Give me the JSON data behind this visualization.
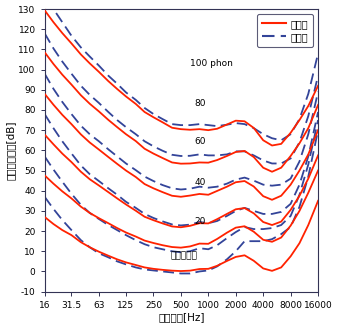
{
  "xlabel": "周波数　[Hz]",
  "ylabel": "音圧レベル　[dB]",
  "legend_new": "新規格",
  "legend_old": "旧規格",
  "new_color": "#ff2200",
  "old_color": "#334499",
  "ylim": [
    -10,
    130
  ],
  "yticks": [
    -10,
    0,
    10,
    20,
    30,
    40,
    50,
    60,
    70,
    80,
    90,
    100,
    110,
    120,
    130
  ],
  "freqs": [
    16,
    20,
    25,
    31.5,
    40,
    50,
    63,
    80,
    100,
    125,
    160,
    200,
    250,
    315,
    400,
    500,
    630,
    800,
    1000,
    1250,
    1600,
    2000,
    2500,
    3150,
    4000,
    5000,
    6300,
    8000,
    10000,
    12500,
    16000
  ],
  "xtick_labels": [
    "16",
    "31.5",
    "63",
    "125",
    "250",
    "500",
    "1000",
    "2000",
    "4000",
    "8000",
    "16000"
  ],
  "xtick_freqs": [
    16,
    31.5,
    63,
    125,
    250,
    500,
    1000,
    2000,
    4000,
    8000,
    16000
  ],
  "new_curves": {
    "100": [
      129.4,
      123.5,
      118.1,
      113.0,
      107.5,
      103.1,
      98.9,
      94.3,
      90.4,
      86.7,
      83.0,
      79.0,
      76.4,
      73.9,
      71.2,
      70.5,
      70.2,
      70.5,
      70.0,
      70.7,
      72.8,
      74.7,
      74.4,
      71.1,
      65.0,
      62.4,
      63.2,
      68.7,
      75.0,
      82.0,
      92.0
    ],
    "80": [
      108.6,
      102.8,
      97.5,
      92.6,
      87.3,
      83.1,
      79.3,
      75.1,
      71.5,
      68.0,
      64.6,
      60.8,
      58.4,
      56.2,
      54.0,
      53.4,
      53.5,
      54.0,
      53.9,
      55.2,
      57.2,
      59.2,
      59.7,
      56.7,
      51.4,
      49.4,
      51.4,
      57.2,
      63.5,
      71.0,
      82.5
    ],
    "60": [
      88.0,
      82.6,
      77.6,
      73.0,
      67.9,
      63.9,
      60.4,
      56.7,
      53.3,
      50.0,
      46.8,
      43.3,
      41.2,
      39.3,
      37.5,
      37.0,
      37.6,
      38.4,
      38.0,
      39.9,
      42.0,
      44.2,
      44.8,
      42.1,
      37.3,
      35.5,
      37.5,
      43.0,
      50.0,
      58.0,
      70.0
    ],
    "40": [
      67.8,
      63.0,
      58.4,
      54.2,
      49.4,
      45.7,
      42.6,
      39.3,
      36.2,
      33.2,
      30.1,
      27.1,
      25.4,
      23.8,
      22.3,
      21.9,
      22.6,
      23.9,
      23.8,
      25.9,
      28.5,
      30.8,
      31.4,
      28.8,
      24.5,
      23.0,
      24.7,
      30.5,
      37.5,
      46.0,
      57.5
    ],
    "20": [
      47.6,
      43.5,
      39.7,
      36.2,
      32.1,
      29.0,
      26.4,
      23.9,
      21.5,
      19.3,
      17.3,
      15.3,
      14.1,
      13.0,
      12.1,
      11.8,
      12.4,
      13.8,
      13.7,
      16.1,
      19.2,
      21.7,
      22.4,
      19.7,
      15.7,
      14.7,
      16.8,
      22.7,
      30.0,
      39.0,
      50.0
    ],
    "0": [
      27.0,
      23.5,
      20.5,
      18.0,
      14.5,
      12.0,
      9.8,
      7.8,
      6.0,
      4.5,
      3.2,
      2.0,
      1.3,
      0.8,
      0.4,
      0.2,
      0.4,
      1.2,
      1.3,
      2.8,
      5.2,
      7.2,
      8.0,
      5.3,
      1.5,
      0.3,
      2.0,
      7.5,
      14.0,
      23.0,
      35.0
    ]
  },
  "old_curves": {
    "100": [
      138.0,
      130.0,
      123.5,
      116.8,
      111.0,
      106.5,
      102.0,
      97.0,
      93.0,
      88.7,
      85.0,
      81.0,
      78.0,
      75.5,
      73.0,
      72.5,
      72.5,
      73.0,
      72.5,
      72.0,
      72.7,
      73.5,
      73.0,
      71.0,
      68.0,
      66.0,
      65.0,
      68.0,
      75.5,
      88.0,
      108.0
    ],
    "80": [
      118.0,
      110.5,
      104.0,
      98.0,
      92.0,
      87.5,
      83.5,
      79.0,
      75.0,
      71.5,
      68.0,
      64.5,
      62.0,
      59.8,
      57.8,
      57.2,
      57.3,
      58.0,
      57.5,
      57.5,
      58.0,
      59.5,
      59.5,
      57.5,
      55.0,
      53.5,
      53.5,
      56.0,
      64.0,
      77.0,
      97.0
    ],
    "60": [
      98.0,
      90.5,
      84.0,
      78.0,
      72.2,
      68.0,
      64.5,
      60.5,
      57.0,
      53.5,
      50.2,
      47.0,
      44.8,
      42.8,
      41.2,
      40.6,
      41.0,
      42.0,
      41.5,
      42.0,
      43.5,
      45.5,
      46.5,
      45.0,
      43.0,
      42.5,
      43.0,
      46.0,
      54.5,
      68.0,
      89.0
    ],
    "40": [
      78.0,
      71.0,
      64.5,
      58.5,
      52.5,
      48.2,
      44.8,
      41.2,
      38.0,
      34.5,
      31.5,
      28.5,
      26.5,
      24.8,
      23.3,
      22.8,
      23.2,
      24.5,
      23.9,
      25.0,
      27.5,
      30.0,
      31.5,
      30.0,
      28.5,
      28.5,
      29.5,
      33.5,
      43.0,
      57.0,
      79.0
    ],
    "20": [
      57.0,
      50.5,
      44.5,
      38.5,
      33.0,
      29.0,
      26.0,
      23.0,
      20.5,
      18.0,
      15.5,
      13.5,
      12.0,
      11.0,
      10.0,
      9.5,
      10.0,
      11.5,
      11.0,
      13.0,
      16.5,
      19.5,
      22.0,
      21.0,
      21.0,
      21.5,
      23.0,
      27.5,
      38.0,
      53.0,
      75.0
    ],
    "0": [
      37.0,
      31.0,
      25.5,
      20.5,
      15.5,
      12.0,
      9.0,
      7.0,
      5.0,
      3.5,
      2.0,
      1.0,
      0.5,
      0.0,
      -0.5,
      -1.0,
      -1.0,
      0.0,
      0.5,
      2.5,
      6.0,
      10.0,
      15.0,
      15.0,
      15.0,
      16.0,
      18.5,
      22.0,
      32.0,
      47.0,
      70.0
    ]
  },
  "annotations": [
    {
      "label": "100 phon",
      "freq": 630,
      "spl": 101.0
    },
    {
      "label": "80",
      "freq": 700,
      "spl": 81.0
    },
    {
      "label": "60",
      "freq": 700,
      "spl": 62.0
    },
    {
      "label": "40",
      "freq": 700,
      "spl": 42.0
    },
    {
      "label": "20",
      "freq": 700,
      "spl": 22.5
    },
    {
      "label": "最小可聴値",
      "freq": 380,
      "spl": 5.5
    }
  ]
}
